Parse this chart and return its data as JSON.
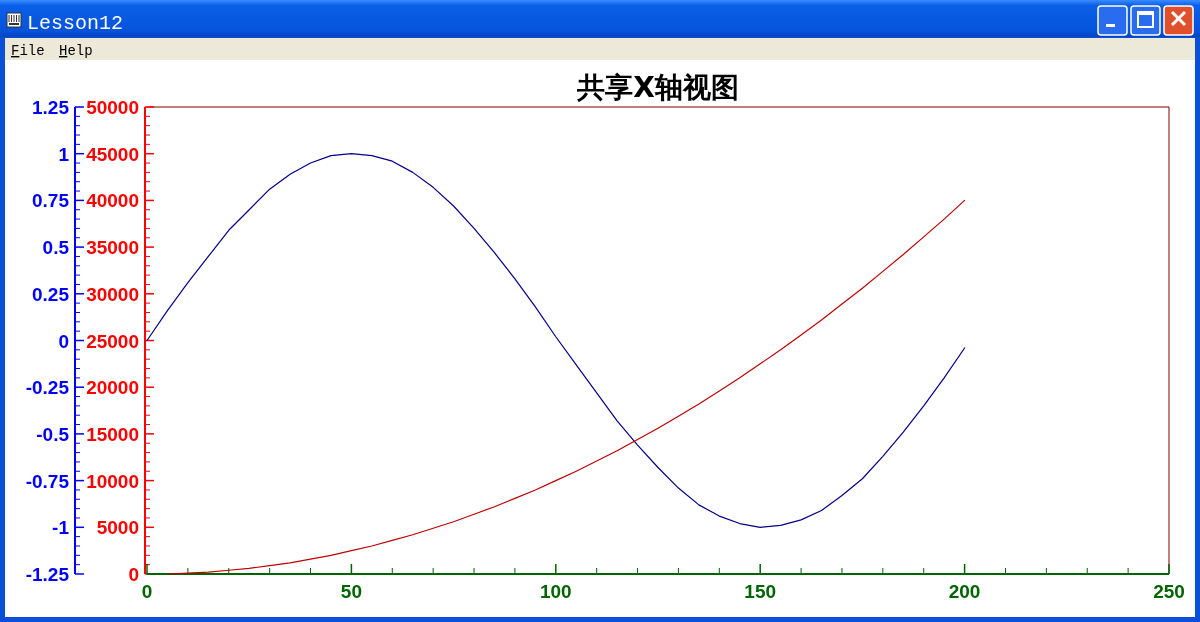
{
  "chart_data": {
    "type": "line",
    "title": "共享X轴视图",
    "annotations": [
      "Lesson12",
      "File",
      "Help"
    ],
    "x": [
      0,
      5,
      10,
      15,
      20,
      25,
      30,
      35,
      40,
      45,
      50,
      55,
      60,
      65,
      70,
      75,
      80,
      85,
      90,
      95,
      100,
      105,
      110,
      115,
      120,
      125,
      130,
      135,
      140,
      145,
      150,
      155,
      160,
      165,
      170,
      175,
      180,
      185,
      190,
      195,
      200
    ],
    "xlim": [
      0,
      250
    ],
    "xticks": [
      0,
      50,
      100,
      150,
      200,
      250
    ],
    "ylim": [
      -1.25,
      1.25
    ],
    "yticks": [
      -1.25,
      -1,
      -0.75,
      -0.5,
      -0.25,
      0,
      0.25,
      0.5,
      0.75,
      1,
      1.25
    ],
    "y2lim": [
      0,
      50000
    ],
    "y2ticks": [
      0,
      5000,
      10000,
      15000,
      20000,
      25000,
      30000,
      35000,
      40000,
      45000,
      50000
    ],
    "series": [
      {
        "color": "#00008b",
        "values": [
          0,
          0.16,
          0.31,
          0.45,
          0.59,
          0.7,
          0.81,
          0.89,
          0.95,
          0.99,
          1,
          0.99,
          0.96,
          0.9,
          0.82,
          0.72,
          0.6,
          0.47,
          0.33,
          0.18,
          0.02,
          -0.13,
          -0.28,
          -0.43,
          -0.56,
          -0.68,
          -0.79,
          -0.88,
          -0.94,
          -0.98,
          -1,
          -0.99,
          -0.96,
          -0.91,
          -0.83,
          -0.74,
          -0.62,
          -0.49,
          -0.35,
          -0.2,
          -0.04
        ]
      },
      {
        "color": "#c00000",
        "axis": "y2",
        "values": [
          null,
          0,
          100,
          200,
          400,
          600,
          900,
          1200,
          1600,
          2000,
          2500,
          3000,
          3600,
          4200,
          4900,
          5600,
          6400,
          7200,
          8100,
          9000,
          10000,
          11000,
          12100,
          13200,
          14400,
          15600,
          16900,
          18200,
          19600,
          21000,
          22500,
          24000,
          25600,
          27200,
          28900,
          30600,
          32400,
          34200,
          36100,
          38000,
          40000
        ]
      }
    ]
  }
}
